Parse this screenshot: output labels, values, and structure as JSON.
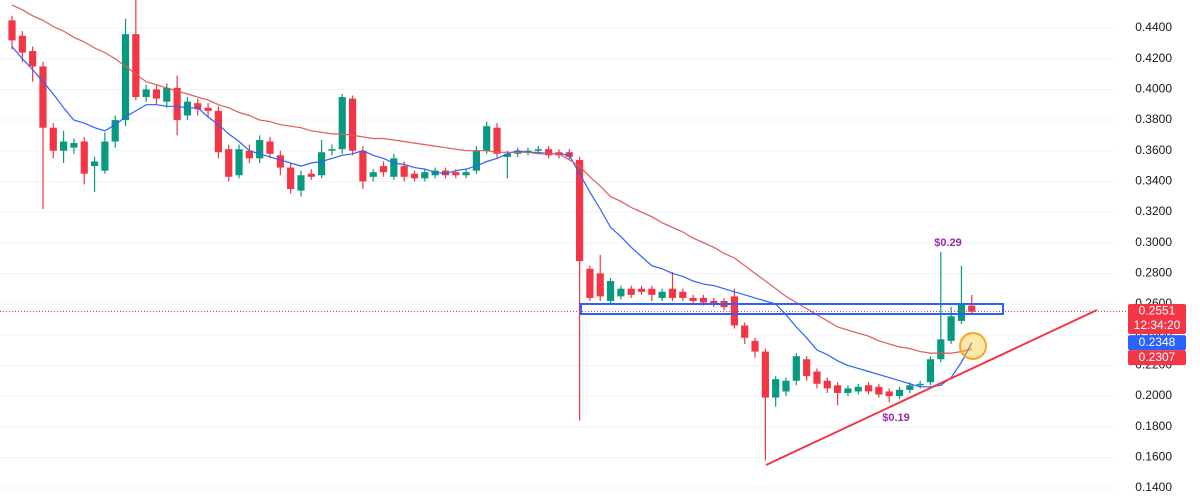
{
  "chart_data": {
    "type": "candlestick",
    "candles": [
      [
        0.445,
        0.448,
        0.426,
        0.432
      ],
      [
        0.435,
        0.438,
        0.418,
        0.424
      ],
      [
        0.425,
        0.428,
        0.405,
        0.415
      ],
      [
        0.415,
        0.418,
        0.322,
        0.375
      ],
      [
        0.375,
        0.378,
        0.355,
        0.36
      ],
      [
        0.36,
        0.373,
        0.352,
        0.366
      ],
      [
        0.362,
        0.368,
        0.358,
        0.365
      ],
      [
        0.366,
        0.369,
        0.338,
        0.345
      ],
      [
        0.35,
        0.356,
        0.333,
        0.353
      ],
      [
        0.347,
        0.372,
        0.345,
        0.366
      ],
      [
        0.366,
        0.383,
        0.362,
        0.38
      ],
      [
        0.38,
        0.446,
        0.376,
        0.436
      ],
      [
        0.436,
        0.46,
        0.393,
        0.395
      ],
      [
        0.395,
        0.403,
        0.392,
        0.4
      ],
      [
        0.4,
        0.403,
        0.39,
        0.394
      ],
      [
        0.392,
        0.404,
        0.388,
        0.401
      ],
      [
        0.401,
        0.409,
        0.37,
        0.38
      ],
      [
        0.383,
        0.395,
        0.38,
        0.392
      ],
      [
        0.391,
        0.394,
        0.383,
        0.387
      ],
      [
        0.388,
        0.391,
        0.382,
        0.386
      ],
      [
        0.386,
        0.389,
        0.355,
        0.359
      ],
      [
        0.361,
        0.364,
        0.34,
        0.343
      ],
      [
        0.344,
        0.364,
        0.342,
        0.361
      ],
      [
        0.36,
        0.364,
        0.352,
        0.355
      ],
      [
        0.355,
        0.37,
        0.352,
        0.367
      ],
      [
        0.366,
        0.369,
        0.355,
        0.358
      ],
      [
        0.357,
        0.36,
        0.344,
        0.349
      ],
      [
        0.349,
        0.352,
        0.332,
        0.335
      ],
      [
        0.334,
        0.347,
        0.33,
        0.344
      ],
      [
        0.345,
        0.348,
        0.341,
        0.343
      ],
      [
        0.344,
        0.367,
        0.342,
        0.359
      ],
      [
        0.36,
        0.364,
        0.357,
        0.361
      ],
      [
        0.361,
        0.397,
        0.358,
        0.395
      ],
      [
        0.394,
        0.396,
        0.357,
        0.36
      ],
      [
        0.36,
        0.363,
        0.335,
        0.34
      ],
      [
        0.343,
        0.348,
        0.34,
        0.346
      ],
      [
        0.35,
        0.353,
        0.343,
        0.346
      ],
      [
        0.343,
        0.358,
        0.341,
        0.355
      ],
      [
        0.35,
        0.353,
        0.34,
        0.343
      ],
      [
        0.345,
        0.347,
        0.34,
        0.342
      ],
      [
        0.342,
        0.348,
        0.34,
        0.346
      ],
      [
        0.344,
        0.349,
        0.342,
        0.347
      ],
      [
        0.347,
        0.349,
        0.342,
        0.344
      ],
      [
        0.346,
        0.348,
        0.342,
        0.344
      ],
      [
        0.344,
        0.348,
        0.342,
        0.346
      ],
      [
        0.347,
        0.363,
        0.345,
        0.36
      ],
      [
        0.36,
        0.379,
        0.358,
        0.376
      ],
      [
        0.375,
        0.378,
        0.355,
        0.358
      ],
      [
        0.356,
        0.36,
        0.342,
        0.358
      ],
      [
        0.358,
        0.362,
        0.356,
        0.36
      ],
      [
        0.359,
        0.362,
        0.357,
        0.36
      ],
      [
        0.36,
        0.363,
        0.358,
        0.361
      ],
      [
        0.361,
        0.363,
        0.355,
        0.357
      ],
      [
        0.359,
        0.361,
        0.355,
        0.357
      ],
      [
        0.359,
        0.361,
        0.354,
        0.356
      ],
      [
        0.354,
        0.356,
        0.184,
        0.288
      ],
      [
        0.283,
        0.285,
        0.262,
        0.264
      ],
      [
        0.28,
        0.292,
        0.262,
        0.265
      ],
      [
        0.262,
        0.277,
        0.26,
        0.275
      ],
      [
        0.265,
        0.272,
        0.263,
        0.27
      ],
      [
        0.27,
        0.272,
        0.264,
        0.266
      ],
      [
        0.27,
        0.272,
        0.266,
        0.268
      ],
      [
        0.27,
        0.272,
        0.262,
        0.266
      ],
      [
        0.264,
        0.27,
        0.262,
        0.268
      ],
      [
        0.27,
        0.281,
        0.262,
        0.264
      ],
      [
        0.268,
        0.27,
        0.262,
        0.264
      ],
      [
        0.264,
        0.266,
        0.26,
        0.262
      ],
      [
        0.264,
        0.266,
        0.259,
        0.261
      ],
      [
        0.262,
        0.264,
        0.258,
        0.26
      ],
      [
        0.262,
        0.264,
        0.256,
        0.258
      ],
      [
        0.265,
        0.27,
        0.244,
        0.246
      ],
      [
        0.246,
        0.248,
        0.234,
        0.238
      ],
      [
        0.236,
        0.238,
        0.225,
        0.229
      ],
      [
        0.229,
        0.231,
        0.158,
        0.199
      ],
      [
        0.199,
        0.213,
        0.193,
        0.211
      ],
      [
        0.203,
        0.212,
        0.2,
        0.21
      ],
      [
        0.21,
        0.228,
        0.207,
        0.226
      ],
      [
        0.224,
        0.226,
        0.21,
        0.213
      ],
      [
        0.216,
        0.218,
        0.205,
        0.208
      ],
      [
        0.21,
        0.212,
        0.202,
        0.205
      ],
      [
        0.207,
        0.209,
        0.194,
        0.202
      ],
      [
        0.202,
        0.207,
        0.2,
        0.205
      ],
      [
        0.203,
        0.208,
        0.201,
        0.206
      ],
      [
        0.207,
        0.209,
        0.201,
        0.203
      ],
      [
        0.206,
        0.208,
        0.199,
        0.201
      ],
      [
        0.203,
        0.205,
        0.196,
        0.2
      ],
      [
        0.2,
        0.206,
        0.198,
        0.204
      ],
      [
        0.204,
        0.209,
        0.202,
        0.207
      ],
      [
        0.207,
        0.21,
        0.205,
        0.208
      ],
      [
        0.209,
        0.226,
        0.207,
        0.224
      ],
      [
        0.224,
        0.294,
        0.222,
        0.237
      ],
      [
        0.236,
        0.258,
        0.234,
        0.252
      ],
      [
        0.249,
        0.285,
        0.247,
        0.26
      ],
      [
        0.259,
        0.266,
        0.253,
        0.255
      ]
    ],
    "up_color": "#089981",
    "down_color": "#f23645",
    "series": [
      {
        "color": "#2962ff",
        "values": [
          0.428,
          0.42,
          0.413,
          0.405,
          0.397,
          0.388,
          0.38,
          0.378,
          0.375,
          0.373,
          0.377,
          0.382,
          0.386,
          0.39,
          0.39,
          0.389,
          0.389,
          0.388,
          0.388,
          0.382,
          0.377,
          0.371,
          0.366,
          0.36,
          0.358,
          0.356,
          0.354,
          0.352,
          0.35,
          0.352,
          0.353,
          0.355,
          0.357,
          0.358,
          0.36,
          0.357,
          0.355,
          0.352,
          0.351,
          0.349,
          0.348,
          0.346,
          0.345,
          0.347,
          0.348,
          0.35,
          0.353,
          0.355,
          0.358,
          0.36,
          0.359,
          0.359,
          0.358,
          0.358,
          0.357,
          0.345,
          0.333,
          0.322,
          0.31,
          0.304,
          0.297,
          0.291,
          0.285,
          0.283,
          0.28,
          0.278,
          0.275,
          0.273,
          0.272,
          0.27,
          0.268,
          0.266,
          0.264,
          0.262,
          0.26,
          0.253,
          0.245,
          0.238,
          0.23,
          0.227,
          0.223,
          0.22,
          0.218,
          0.216,
          0.214,
          0.212,
          0.21,
          0.208,
          0.206,
          0.206,
          0.207,
          0.212,
          0.222,
          0.2348
        ]
      },
      {
        "color": "#e05a5a",
        "values": [
          0.455,
          0.452,
          0.448,
          0.445,
          0.441,
          0.438,
          0.434,
          0.431,
          0.427,
          0.424,
          0.42,
          0.415,
          0.41,
          0.405,
          0.403,
          0.401,
          0.399,
          0.397,
          0.395,
          0.393,
          0.39,
          0.388,
          0.385,
          0.383,
          0.38,
          0.379,
          0.377,
          0.376,
          0.375,
          0.373,
          0.372,
          0.371,
          0.371,
          0.37,
          0.369,
          0.368,
          0.368,
          0.367,
          0.366,
          0.365,
          0.364,
          0.363,
          0.362,
          0.361,
          0.36,
          0.36,
          0.36,
          0.359,
          0.359,
          0.359,
          0.359,
          0.358,
          0.358,
          0.358,
          0.354,
          0.35,
          0.343,
          0.337,
          0.33,
          0.327,
          0.323,
          0.32,
          0.317,
          0.313,
          0.31,
          0.307,
          0.303,
          0.3,
          0.297,
          0.293,
          0.29,
          0.285,
          0.28,
          0.275,
          0.27,
          0.265,
          0.261,
          0.257,
          0.253,
          0.249,
          0.245,
          0.243,
          0.241,
          0.239,
          0.236,
          0.234,
          0.232,
          0.231,
          0.229,
          0.228,
          0.228,
          0.228,
          0.229,
          0.2307
        ]
      }
    ],
    "ylim": [
      0.1322,
      0.4583
    ],
    "yticks": [
      {
        "value": 0.14,
        "label": "0.1400"
      },
      {
        "value": 0.16,
        "label": "0.1600"
      },
      {
        "value": 0.18,
        "label": "0.1800"
      },
      {
        "value": 0.2,
        "label": "0.2000"
      },
      {
        "value": 0.22,
        "label": "0.2200"
      },
      {
        "value": 0.24,
        "label": "0.2400"
      },
      {
        "value": 0.26,
        "label": "0.2600"
      },
      {
        "value": 0.28,
        "label": "0.2800"
      },
      {
        "value": 0.3,
        "label": "0.3000"
      },
      {
        "value": 0.32,
        "label": "0.3200"
      },
      {
        "value": 0.34,
        "label": "0.3400"
      },
      {
        "value": 0.36,
        "label": "0.3600"
      },
      {
        "value": 0.38,
        "label": "0.3800"
      },
      {
        "value": 0.4,
        "label": "0.4000"
      },
      {
        "value": 0.42,
        "label": "0.4200"
      },
      {
        "value": 0.44,
        "label": "0.4400"
      }
    ],
    "grid": true,
    "price_labels": [
      {
        "value": 0.2551,
        "label": "0.2551",
        "color": "#f23645",
        "countdown": "12:34:20"
      },
      {
        "value": 0.2348,
        "label": "0.2348",
        "color": "#2962ff"
      },
      {
        "value": 0.2307,
        "label": "0.2307",
        "color": "#f23645"
      }
    ],
    "annotations": [
      "$0.29",
      "$0.19"
    ]
  }
}
